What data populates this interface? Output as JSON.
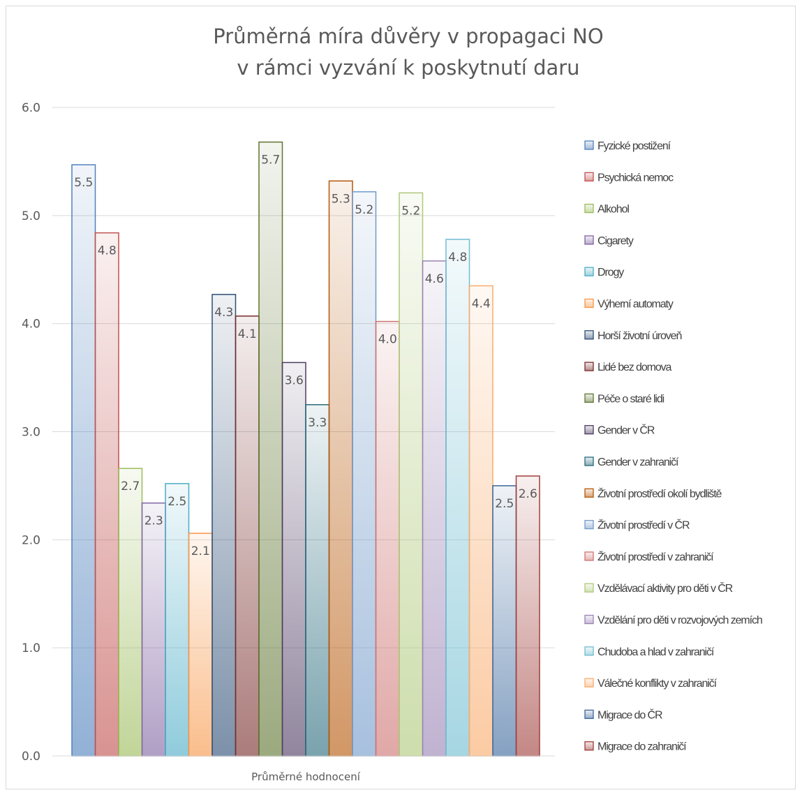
{
  "chart_data": {
    "type": "bar",
    "title": [
      "Průměrná míra důvěry v propagaci NO",
      "v rámci vyzvání k poskytnutí daru"
    ],
    "category": "Průměrné hodnocení",
    "ylim": [
      0,
      6
    ],
    "yticks": [
      "0.0",
      "1.0",
      "2.0",
      "3.0",
      "4.0",
      "5.0",
      "6.0"
    ],
    "grid": true,
    "legend_position": "right",
    "series": [
      {
        "name": "Fyzické postižení",
        "value": 5.47,
        "label": "5.5",
        "color": "#4f81bd"
      },
      {
        "name": "Psychická nemoc",
        "value": 4.84,
        "label": "4.8",
        "color": "#c0504d"
      },
      {
        "name": "Alkohol",
        "value": 2.66,
        "label": "2.7",
        "color": "#9bbb59"
      },
      {
        "name": "Cigarety",
        "value": 2.34,
        "label": "2.3",
        "color": "#8064a2"
      },
      {
        "name": "Drogy",
        "value": 2.52,
        "label": "2.5",
        "color": "#4bacc6"
      },
      {
        "name": "Výherní automaty",
        "value": 2.06,
        "label": "2.1",
        "color": "#f79646"
      },
      {
        "name": "Horší životní úroveň",
        "value": 4.27,
        "label": "4.3",
        "color": "#2c4d75"
      },
      {
        "name": "Lidé bez domova",
        "value": 4.07,
        "label": "4.1",
        "color": "#772c2a"
      },
      {
        "name": "Péče o staré lidi",
        "value": 5.68,
        "label": "5.7",
        "color": "#5f7530"
      },
      {
        "name": "Gender v ČR",
        "value": 3.64,
        "label": "3.6",
        "color": "#4d3b62"
      },
      {
        "name": "Gender v zahraničí",
        "value": 3.25,
        "label": "3.3",
        "color": "#276a7c"
      },
      {
        "name": "Životní prostředí okolí bydliště",
        "value": 5.32,
        "label": "5.3",
        "color": "#b65708"
      },
      {
        "name": "Životní prostředí v ČR",
        "value": 5.22,
        "label": "5.2",
        "color": "#729aca"
      },
      {
        "name": "Životní prostředí v zahraničí",
        "value": 4.02,
        "label": "4.0",
        "color": "#cd7371"
      },
      {
        "name": "Vzdělávací aktivity pro děti v ČR",
        "value": 5.21,
        "label": "5.2",
        "color": "#afc97a"
      },
      {
        "name": "Vzdělání pro děti v rozvojových zemích",
        "value": 4.58,
        "label": "4.6",
        "color": "#9983b5"
      },
      {
        "name": "Chudoba a hlad v zahraničí",
        "value": 4.78,
        "label": "4.8",
        "color": "#6fbdd1"
      },
      {
        "name": "Válečné konflikty v zahraničí",
        "value": 4.35,
        "label": "4.4",
        "color": "#f9ab6b"
      },
      {
        "name": "Migrace do ČR",
        "value": 2.5,
        "label": "2.5",
        "color": "#3a679c"
      },
      {
        "name": "Migrace do zahraničí",
        "value": 2.59,
        "label": "2.6",
        "color": "#9f3e3a"
      }
    ]
  }
}
